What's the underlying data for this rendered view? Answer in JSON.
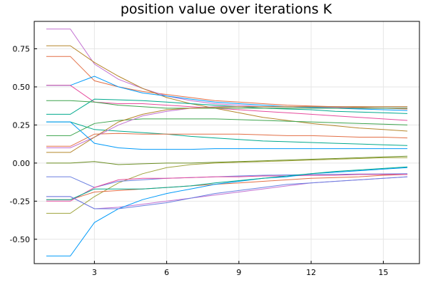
{
  "chart_data": {
    "type": "line",
    "title": "position value over iterations K",
    "xlabel": "",
    "ylabel": "",
    "xlim": [
      0.5,
      16.5
    ],
    "ylim": [
      -0.66,
      0.93
    ],
    "xticks": [
      3,
      6,
      9,
      12,
      15
    ],
    "xtick_labels": [
      "3",
      "6",
      "9",
      "12",
      "15"
    ],
    "yticks": [
      -0.5,
      -0.25,
      0.0,
      0.25,
      0.5,
      0.75
    ],
    "ytick_labels": [
      "-0.50",
      "-0.25",
      "0.00",
      "0.25",
      "0.50",
      "0.75"
    ],
    "grid": true,
    "legend": "none",
    "x": [
      1,
      2,
      3,
      4,
      5,
      6,
      7,
      8,
      9,
      10,
      11,
      12,
      13,
      14,
      15,
      16
    ],
    "series": [
      {
        "color": "#e26f46",
        "values": [
          0.7,
          0.7,
          0.54,
          0.5,
          0.47,
          0.45,
          0.43,
          0.41,
          0.4,
          0.39,
          0.38,
          0.375,
          0.37,
          0.365,
          0.36,
          0.355
        ]
      },
      {
        "color": "#c271d2",
        "values": [
          0.88,
          0.88,
          0.65,
          0.55,
          0.49,
          0.44,
          0.41,
          0.39,
          0.38,
          0.37,
          0.37,
          0.365,
          0.365,
          0.36,
          0.36,
          0.36
        ]
      },
      {
        "color": "#b5862b",
        "values": [
          0.77,
          0.77,
          0.66,
          0.57,
          0.49,
          0.43,
          0.39,
          0.36,
          0.33,
          0.3,
          0.28,
          0.26,
          0.245,
          0.23,
          0.22,
          0.21
        ]
      },
      {
        "color": "#009af9",
        "values": [
          0.51,
          0.51,
          0.57,
          0.5,
          0.46,
          0.44,
          0.42,
          0.4,
          0.39,
          0.38,
          0.37,
          0.365,
          0.36,
          0.355,
          0.35,
          0.345
        ]
      },
      {
        "color": "#e64b9d",
        "values": [
          0.51,
          0.51,
          0.4,
          0.39,
          0.39,
          0.38,
          0.37,
          0.36,
          0.35,
          0.34,
          0.33,
          0.32,
          0.31,
          0.3,
          0.29,
          0.28
        ]
      },
      {
        "color": "#00a98d",
        "values": [
          0.32,
          0.32,
          0.42,
          0.415,
          0.41,
          0.4,
          0.39,
          0.38,
          0.37,
          0.36,
          0.355,
          0.35,
          0.34,
          0.335,
          0.33,
          0.325
        ]
      },
      {
        "color": "#3da44d",
        "values": [
          0.41,
          0.41,
          0.4,
          0.38,
          0.37,
          0.36,
          0.36,
          0.36,
          0.36,
          0.36,
          0.36,
          0.36,
          0.36,
          0.36,
          0.36,
          0.36
        ]
      },
      {
        "color": "#00a98d",
        "values": [
          0.27,
          0.27,
          0.22,
          0.21,
          0.2,
          0.19,
          0.175,
          0.165,
          0.155,
          0.145,
          0.14,
          0.135,
          0.13,
          0.125,
          0.12,
          0.115
        ]
      },
      {
        "color": "#3da44d",
        "values": [
          0.18,
          0.18,
          0.26,
          0.28,
          0.29,
          0.29,
          0.29,
          0.29,
          0.285,
          0.28,
          0.275,
          0.27,
          0.265,
          0.26,
          0.255,
          0.25
        ]
      },
      {
        "color": "#e26f46",
        "values": [
          0.11,
          0.11,
          0.19,
          0.195,
          0.19,
          0.19,
          0.19,
          0.19,
          0.19,
          0.185,
          0.18,
          0.18,
          0.175,
          0.17,
          0.17,
          0.165
        ]
      },
      {
        "color": "#c271d2",
        "values": [
          0.1,
          0.1,
          0.17,
          0.25,
          0.31,
          0.34,
          0.36,
          0.37,
          0.37,
          0.37,
          0.37,
          0.37,
          0.37,
          0.37,
          0.37,
          0.37
        ]
      },
      {
        "color": "#b5862b",
        "values": [
          0.07,
          0.07,
          0.17,
          0.27,
          0.32,
          0.35,
          0.36,
          0.365,
          0.37,
          0.37,
          0.37,
          0.37,
          0.37,
          0.37,
          0.37,
          0.37
        ]
      },
      {
        "color": "#009af9",
        "values": [
          0.27,
          0.27,
          0.13,
          0.1,
          0.09,
          0.09,
          0.09,
          0.095,
          0.095,
          0.095,
          0.095,
          0.095,
          0.095,
          0.095,
          0.095,
          0.095
        ]
      },
      {
        "color": "#6b8e23",
        "values": [
          0.0,
          0.0,
          0.01,
          -0.01,
          -0.005,
          0.0,
          0.0,
          0.005,
          0.01,
          0.015,
          0.02,
          0.025,
          0.03,
          0.035,
          0.04,
          0.045
        ]
      },
      {
        "color": "#9fa43d",
        "values": [
          -0.33,
          -0.33,
          -0.22,
          -0.13,
          -0.07,
          -0.03,
          -0.01,
          0.0,
          0.005,
          0.01,
          0.015,
          0.02,
          0.025,
          0.03,
          0.035,
          0.035
        ]
      },
      {
        "color": "#6a7fe0",
        "values": [
          -0.09,
          -0.09,
          -0.16,
          -0.12,
          -0.11,
          -0.1,
          -0.095,
          -0.09,
          -0.085,
          -0.08,
          -0.078,
          -0.076,
          -0.074,
          -0.072,
          -0.071,
          -0.07
        ]
      },
      {
        "color": "#e26f46",
        "values": [
          -0.24,
          -0.24,
          -0.19,
          -0.18,
          -0.17,
          -0.16,
          -0.15,
          -0.14,
          -0.13,
          -0.12,
          -0.11,
          -0.1,
          -0.095,
          -0.09,
          -0.08,
          -0.075
        ]
      },
      {
        "color": "#c271d2",
        "values": [
          -0.22,
          -0.22,
          -0.3,
          -0.29,
          -0.27,
          -0.25,
          -0.23,
          -0.21,
          -0.19,
          -0.17,
          -0.15,
          -0.13,
          -0.12,
          -0.11,
          -0.1,
          -0.09
        ]
      },
      {
        "color": "#e64b9d",
        "values": [
          -0.25,
          -0.25,
          -0.16,
          -0.11,
          -0.1,
          -0.1,
          -0.095,
          -0.09,
          -0.09,
          -0.085,
          -0.085,
          -0.08,
          -0.08,
          -0.075,
          -0.075,
          -0.075
        ]
      },
      {
        "color": "#009af9",
        "values": [
          -0.61,
          -0.61,
          -0.39,
          -0.3,
          -0.24,
          -0.2,
          -0.17,
          -0.14,
          -0.12,
          -0.1,
          -0.09,
          -0.07,
          -0.06,
          -0.05,
          -0.04,
          -0.03
        ]
      },
      {
        "color": "#00a98d",
        "values": [
          -0.24,
          -0.24,
          -0.17,
          -0.17,
          -0.17,
          -0.16,
          -0.15,
          -0.13,
          -0.115,
          -0.1,
          -0.085,
          -0.07,
          -0.055,
          -0.045,
          -0.035,
          -0.025
        ]
      },
      {
        "color": "#6a7fe0",
        "values": [
          -0.22,
          -0.22,
          -0.3,
          -0.3,
          -0.28,
          -0.26,
          -0.23,
          -0.2,
          -0.18,
          -0.16,
          -0.14,
          -0.13,
          -0.12,
          -0.11,
          -0.1,
          -0.09
        ]
      }
    ]
  }
}
